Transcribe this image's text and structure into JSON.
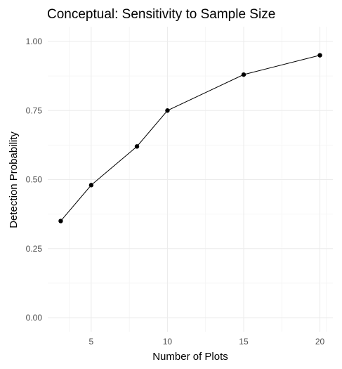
{
  "chart_data": {
    "type": "line",
    "title": "Conceptual: Sensitivity to Sample Size",
    "xlabel": "Number of Plots",
    "ylabel": "Detection Probability",
    "x": [
      3,
      5,
      8,
      10,
      15,
      20
    ],
    "series": [
      {
        "values": [
          0.35,
          0.48,
          0.62,
          0.75,
          0.88,
          0.95
        ]
      }
    ],
    "xlim": [
      2.15,
      20.85
    ],
    "ylim": [
      0,
      1
    ],
    "xticks": [
      5,
      10,
      15,
      20
    ],
    "xtick_labels": [
      "5",
      "10",
      "15",
      "20"
    ],
    "yticks": [
      0,
      0.25,
      0.5,
      0.75,
      1
    ],
    "ytick_labels": [
      "0.00",
      "0.25",
      "0.50",
      "0.75",
      "1.00"
    ],
    "grid": true,
    "legend": "none",
    "colors": {
      "line": "#000000",
      "point": "#000000",
      "grid": "#ebebeb",
      "tick_text": "#4d4d4d"
    }
  }
}
